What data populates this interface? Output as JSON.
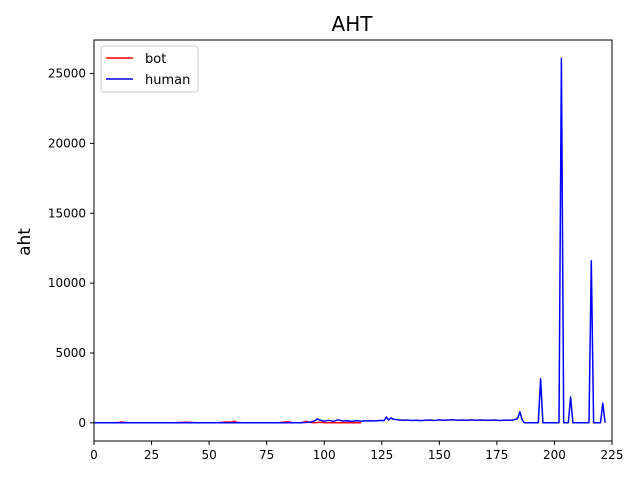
{
  "chart_data": {
    "type": "line",
    "title": "AHT",
    "xlabel": "",
    "ylabel": "aht",
    "xlim": [
      0,
      225
    ],
    "ylim": [
      -1300,
      27400
    ],
    "xticks": [
      0,
      25,
      50,
      75,
      100,
      125,
      150,
      175,
      200,
      225
    ],
    "yticks": [
      0,
      5000,
      10000,
      15000,
      20000,
      25000
    ],
    "grid": false,
    "legend": {
      "position": "upper-left"
    },
    "series": [
      {
        "name": "bot",
        "color": "#ff0000",
        "x": [
          0,
          5,
          10,
          12,
          15,
          20,
          25,
          30,
          35,
          40,
          45,
          50,
          55,
          57,
          60,
          61,
          62,
          65,
          70,
          75,
          80,
          84,
          86,
          90,
          92,
          94,
          96,
          98,
          100,
          105,
          110,
          116
        ],
        "y": [
          0,
          0,
          0,
          60,
          0,
          0,
          0,
          0,
          0,
          40,
          0,
          0,
          20,
          60,
          50,
          120,
          30,
          0,
          0,
          0,
          0,
          80,
          20,
          0,
          100,
          30,
          10,
          40,
          20,
          10,
          20,
          0
        ]
      },
      {
        "name": "human",
        "color": "#0000ff",
        "x": [
          0,
          10,
          20,
          30,
          40,
          50,
          60,
          70,
          80,
          90,
          94,
          96,
          97,
          98,
          100,
          102,
          104,
          106,
          108,
          110,
          112,
          114,
          116,
          118,
          120,
          122,
          124,
          126,
          127,
          128,
          129,
          130,
          132,
          134,
          136,
          138,
          140,
          142,
          144,
          146,
          148,
          150,
          152,
          154,
          156,
          158,
          160,
          162,
          164,
          166,
          168,
          170,
          172,
          174,
          176,
          178,
          180,
          182,
          184,
          185,
          186,
          187,
          190,
          193,
          194,
          195,
          196,
          200,
          202,
          203,
          204,
          205,
          206,
          207,
          208,
          210,
          214,
          215,
          216,
          217,
          218,
          220,
          221,
          222
        ],
        "y": [
          0,
          0,
          0,
          0,
          0,
          0,
          0,
          0,
          0,
          0,
          50,
          150,
          280,
          200,
          120,
          180,
          100,
          220,
          130,
          150,
          100,
          160,
          120,
          140,
          150,
          130,
          170,
          160,
          420,
          200,
          350,
          250,
          220,
          180,
          200,
          170,
          190,
          160,
          180,
          200,
          170,
          210,
          180,
          200,
          220,
          180,
          200,
          190,
          210,
          180,
          200,
          190,
          180,
          200,
          170,
          190,
          180,
          200,
          300,
          800,
          200,
          0,
          0,
          0,
          3150,
          0,
          0,
          0,
          0,
          26100,
          0,
          0,
          0,
          1850,
          0,
          0,
          0,
          0,
          11600,
          0,
          0,
          0,
          1400,
          0
        ]
      }
    ]
  }
}
